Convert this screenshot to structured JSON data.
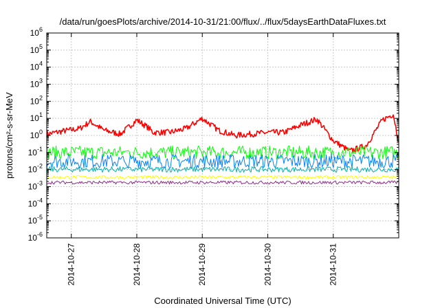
{
  "chart_data": {
    "type": "line",
    "title": "/data/run/goesPlots/archive/2014-10-31/21:00/flux/../flux/5daysEarthDataFluxes.txt",
    "xlabel": "Coordinated Universal Time (UTC)",
    "ylabel": "protons/cm²-s-sr-MeV",
    "yscale": "log",
    "ylim_exponents": [
      -6,
      6
    ],
    "y_tick_labels": [
      {
        "base": "10",
        "exp": "-6"
      },
      {
        "base": "10",
        "exp": "-5"
      },
      {
        "base": "10",
        "exp": "-4"
      },
      {
        "base": "10",
        "exp": "-3"
      },
      {
        "base": "10",
        "exp": "-2"
      },
      {
        "base": "10",
        "exp": "-1"
      },
      {
        "base": "10",
        "exp": "0"
      },
      {
        "base": "10",
        "exp": "1"
      },
      {
        "base": "10",
        "exp": "2"
      },
      {
        "base": "10",
        "exp": "3"
      },
      {
        "base": "10",
        "exp": "4"
      },
      {
        "base": "10",
        "exp": "5"
      },
      {
        "base": "10",
        "exp": "6"
      }
    ],
    "x_range_days": [
      "2014-10-26T15:00",
      "2014-11-01T00:00"
    ],
    "x_tick_labels": [
      "2014-10-27",
      "2014-10-28",
      "2014-10-29",
      "2014-10-30",
      "2014-10-31"
    ],
    "grid": true,
    "series": [
      {
        "color": "#ff0000",
        "x": [
          "2014-10-26T15:00",
          "2014-10-26T21:00",
          "2014-10-27T03:00",
          "2014-10-27T07:00",
          "2014-10-27T12:00",
          "2014-10-27T18:00",
          "2014-10-28T00:00",
          "2014-10-28T04:00",
          "2014-10-28T06:00",
          "2014-10-28T12:00",
          "2014-10-28T18:00",
          "2014-10-29T00:00",
          "2014-10-29T06:00",
          "2014-10-29T12:00",
          "2014-10-29T18:00",
          "2014-10-30T00:00",
          "2014-10-30T06:00",
          "2014-10-30T12:00",
          "2014-10-30T18:00",
          "2014-10-31T00:00",
          "2014-10-31T06:00",
          "2014-10-31T12:00",
          "2014-10-31T18:00",
          "2014-10-31T22:00",
          "2014-11-01T00:00"
        ],
        "y": [
          1.2,
          1.8,
          2.5,
          6.5,
          2.0,
          1.2,
          8.0,
          3.0,
          1.5,
          1.5,
          2.5,
          10.0,
          2.0,
          1.0,
          1.2,
          1.5,
          1.5,
          4.0,
          9.0,
          0.5,
          0.12,
          0.25,
          8.0,
          18.0,
          0.4
        ]
      },
      {
        "color": "#00ff00",
        "x": [
          "2014-10-26T15:00",
          "2014-11-01T00:00"
        ],
        "y": [
          0.1,
          0.1
        ],
        "band": [
          0.04,
          0.25
        ]
      },
      {
        "color": "#0080ff",
        "x": [
          "2014-10-26T15:00",
          "2014-11-01T00:00"
        ],
        "y": [
          0.03,
          0.03
        ],
        "band": [
          0.012,
          0.08
        ]
      },
      {
        "color": "#00b0b0",
        "x": [
          "2014-10-26T15:00",
          "2014-11-01T00:00"
        ],
        "y": [
          0.01,
          0.01
        ],
        "band": [
          0.007,
          0.015
        ]
      },
      {
        "color": "#ffff00",
        "x": [
          "2014-10-26T15:00",
          "2014-11-01T00:00"
        ],
        "y": [
          0.0035,
          0.0035
        ],
        "band": [
          0.0028,
          0.0045
        ]
      },
      {
        "color": "#8b2a8b",
        "x": [
          "2014-10-26T15:00",
          "2014-11-01T00:00"
        ],
        "y": [
          0.0017,
          0.0017
        ],
        "band": [
          0.0014,
          0.0022
        ]
      }
    ]
  }
}
